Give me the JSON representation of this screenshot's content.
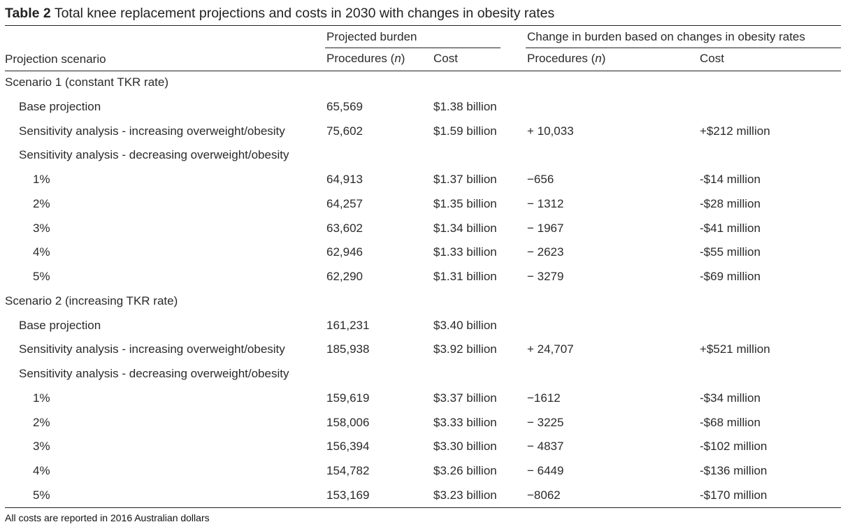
{
  "title": {
    "label": "Table 2",
    "text": "Total knee replacement projections and costs in 2030 with changes in obesity rates"
  },
  "header": {
    "group_projected": "Projected burden",
    "group_change": "Change in burden based on changes in obesity rates",
    "col_scenario": "Projection scenario",
    "col_proc_label": "Procedures (",
    "col_proc_n": "n",
    "col_proc_close": ")",
    "col_cost": "Cost",
    "col_change_proc_label": "Procedures (",
    "col_change_proc_n": "n",
    "col_change_proc_close": ")",
    "col_change_cost": "Cost"
  },
  "rows": [
    {
      "label": "Scenario 1 (constant TKR rate)",
      "indent": 0,
      "procedures": "",
      "cost": "",
      "change_procedures": "",
      "change_cost": ""
    },
    {
      "label": "Base projection",
      "indent": 1,
      "procedures": "65,569",
      "cost": "$1.38 billion",
      "change_procedures": "",
      "change_cost": ""
    },
    {
      "label": "Sensitivity analysis - increasing overweight/obesity",
      "indent": 1,
      "procedures": "75,602",
      "cost": "$1.59 billion",
      "change_procedures": "+ 10,033",
      "change_cost": "+$212 million"
    },
    {
      "label": "Sensitivity analysis - decreasing overweight/obesity",
      "indent": 1,
      "procedures": "",
      "cost": "",
      "change_procedures": "",
      "change_cost": ""
    },
    {
      "label": "1%",
      "indent": 2,
      "procedures": "64,913",
      "cost": "$1.37 billion",
      "change_procedures": "−656",
      "change_cost": "-$14 million"
    },
    {
      "label": "2%",
      "indent": 2,
      "procedures": "64,257",
      "cost": "$1.35 billion",
      "change_procedures": "− 1312",
      "change_cost": "-$28 million"
    },
    {
      "label": "3%",
      "indent": 2,
      "procedures": "63,602",
      "cost": "$1.34 billion",
      "change_procedures": "− 1967",
      "change_cost": "-$41 million"
    },
    {
      "label": "4%",
      "indent": 2,
      "procedures": "62,946",
      "cost": "$1.33 billion",
      "change_procedures": "− 2623",
      "change_cost": "-$55 million"
    },
    {
      "label": "5%",
      "indent": 2,
      "procedures": "62,290",
      "cost": "$1.31 billion",
      "change_procedures": "− 3279",
      "change_cost": "-$69 million"
    },
    {
      "label": "Scenario 2 (increasing TKR rate)",
      "indent": 0,
      "procedures": "",
      "cost": "",
      "change_procedures": "",
      "change_cost": ""
    },
    {
      "label": "Base projection",
      "indent": 1,
      "procedures": "161,231",
      "cost": "$3.40 billion",
      "change_procedures": "",
      "change_cost": ""
    },
    {
      "label": "Sensitivity analysis - increasing overweight/obesity",
      "indent": 1,
      "procedures": "185,938",
      "cost": "$3.92 billion",
      "change_procedures": "+ 24,707",
      "change_cost": "+$521 million"
    },
    {
      "label": "Sensitivity analysis - decreasing overweight/obesity",
      "indent": 1,
      "procedures": "",
      "cost": "",
      "change_procedures": "",
      "change_cost": ""
    },
    {
      "label": "1%",
      "indent": 2,
      "procedures": "159,619",
      "cost": "$3.37 billion",
      "change_procedures": "−1612",
      "change_cost": "-$34 million"
    },
    {
      "label": "2%",
      "indent": 2,
      "procedures": "158,006",
      "cost": "$3.33 billion",
      "change_procedures": "− 3225",
      "change_cost": "-$68 million"
    },
    {
      "label": "3%",
      "indent": 2,
      "procedures": "156,394",
      "cost": "$3.30 billion",
      "change_procedures": "− 4837",
      "change_cost": "-$102 million"
    },
    {
      "label": "4%",
      "indent": 2,
      "procedures": "154,782",
      "cost": "$3.26 billion",
      "change_procedures": "− 6449",
      "change_cost": "-$136 million"
    },
    {
      "label": "5%",
      "indent": 2,
      "procedures": "153,169",
      "cost": "$3.23 billion",
      "change_procedures": "−8062",
      "change_cost": "-$170 million"
    }
  ],
  "footer": "All costs are reported in 2016 Australian dollars"
}
